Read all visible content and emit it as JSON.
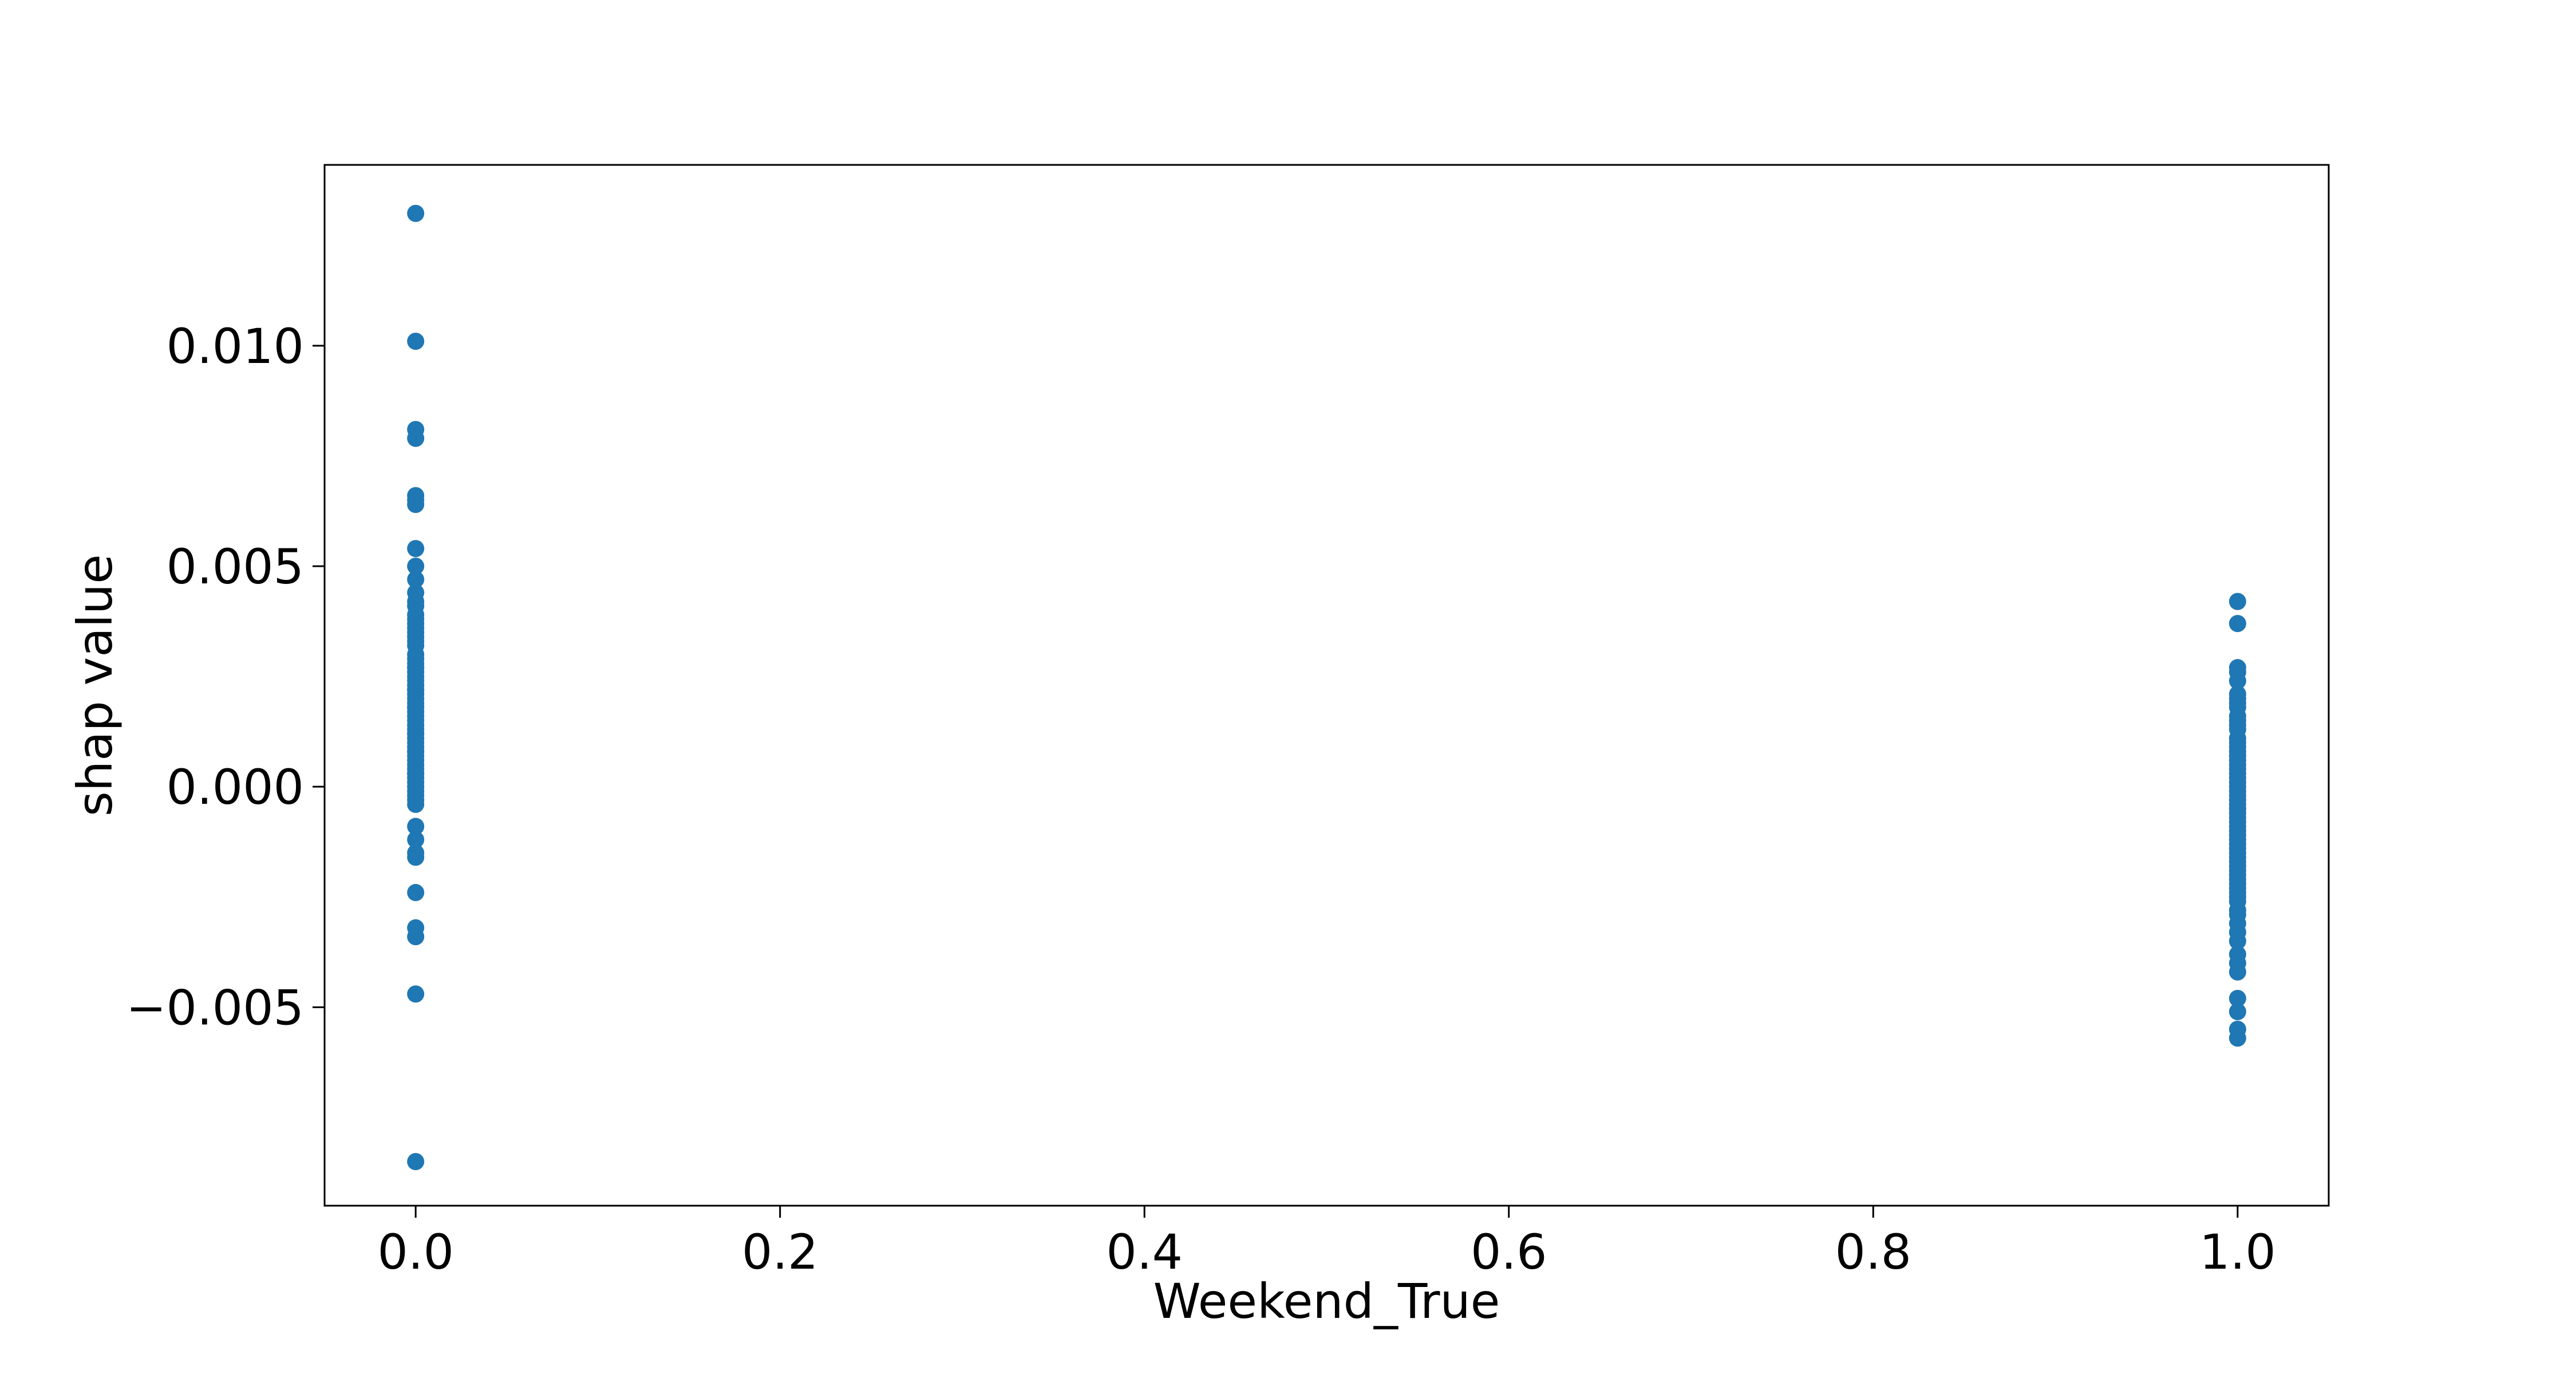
{
  "chart_data": {
    "type": "scatter",
    "title": "",
    "xlabel": "Weekend_True",
    "ylabel": "shap value",
    "xlim": [
      -0.05,
      1.05
    ],
    "ylim": [
      -0.0095,
      0.0141
    ],
    "xticks": [
      0.0,
      0.2,
      0.4,
      0.6,
      0.8,
      1.0
    ],
    "xtick_labels": [
      "0.0",
      "0.2",
      "0.4",
      "0.6",
      "0.8",
      "1.0"
    ],
    "yticks": [
      -0.005,
      0.0,
      0.005,
      0.01
    ],
    "ytick_labels": [
      "−0.005",
      "0.000",
      "0.005",
      "0.010"
    ],
    "grid": false,
    "marker_color": "#1f77b4",
    "series": [
      {
        "x": [
          0,
          0,
          0,
          0,
          0,
          0,
          0,
          0,
          0,
          0,
          0,
          0,
          0,
          0,
          0,
          0,
          0,
          0,
          0,
          0,
          0,
          0,
          0,
          0,
          0,
          0,
          0,
          0,
          0,
          0,
          0,
          0,
          0,
          0,
          0,
          0,
          0,
          0,
          0,
          0,
          0,
          0,
          0,
          0,
          0,
          0,
          0,
          0,
          0,
          0,
          0,
          0,
          0,
          0,
          0,
          0,
          0,
          0,
          0,
          0,
          0,
          0,
          0,
          0,
          0,
          0,
          0,
          0,
          0,
          0,
          0
        ],
        "y": [
          0.013,
          0.0101,
          0.0081,
          0.0079,
          0.0066,
          0.0065,
          0.0064,
          0.0054,
          0.005,
          0.0047,
          0.0044,
          0.0042,
          0.0041,
          0.0039,
          0.0038,
          0.0037,
          0.0036,
          0.0035,
          0.0034,
          0.0033,
          0.0032,
          0.0029,
          0.0028,
          0.0027,
          0.0026,
          0.0025,
          0.0024,
          0.0023,
          0.0022,
          0.0021,
          0.002,
          0.0019,
          0.0018,
          0.0017,
          0.0016,
          0.0015,
          0.0014,
          0.0013,
          0.0012,
          0.0011,
          0.001,
          0.0009,
          0.0008,
          0.0007,
          0.0006,
          0.0005,
          0.0004,
          0.0003,
          0.0002,
          0.0001,
          0.0,
          -0.0001,
          -0.0002,
          -0.0003,
          -0.0004,
          -0.0009,
          -0.0012,
          -0.0015,
          -0.0016,
          -0.0024,
          -0.0032,
          -0.0034,
          -0.0047,
          -0.0085,
          0.0018,
          0.0022,
          0.0027,
          0.003,
          0.0012,
          0.0008,
          0.0003
        ]
      },
      {
        "x": [
          1,
          1,
          1,
          1,
          1,
          1,
          1,
          1,
          1,
          1,
          1,
          1,
          1,
          1,
          1,
          1,
          1,
          1,
          1,
          1,
          1,
          1,
          1,
          1,
          1,
          1,
          1,
          1,
          1,
          1,
          1,
          1,
          1,
          1,
          1,
          1,
          1,
          1,
          1,
          1,
          1,
          1,
          1,
          1,
          1,
          1,
          1,
          1,
          1,
          1,
          1,
          1,
          1,
          1,
          1,
          1,
          1,
          1,
          1,
          1,
          1,
          1,
          1,
          1
        ],
        "y": [
          0.0042,
          0.0037,
          0.0027,
          0.0026,
          0.0024,
          0.0021,
          0.002,
          0.0019,
          0.0018,
          0.0016,
          0.0015,
          0.0014,
          0.0013,
          0.0011,
          0.001,
          0.0009,
          0.0008,
          0.0007,
          0.0006,
          0.0005,
          0.0004,
          0.0003,
          0.0002,
          0.0001,
          0.0,
          -0.0001,
          -0.0002,
          -0.0003,
          -0.0004,
          -0.0005,
          -0.0006,
          -0.0007,
          -0.0008,
          -0.0009,
          -0.001,
          -0.0011,
          -0.0012,
          -0.0013,
          -0.0014,
          -0.0015,
          -0.0016,
          -0.0017,
          -0.0018,
          -0.0019,
          -0.002,
          -0.0021,
          -0.0022,
          -0.0023,
          -0.0024,
          -0.0025,
          -0.0026,
          -0.0028,
          -0.0029,
          -0.0031,
          -0.0033,
          -0.0035,
          -0.0038,
          -0.004,
          -0.0042,
          -0.0048,
          -0.0051,
          -0.0055,
          -0.0057,
          -0.0005
        ]
      }
    ]
  }
}
